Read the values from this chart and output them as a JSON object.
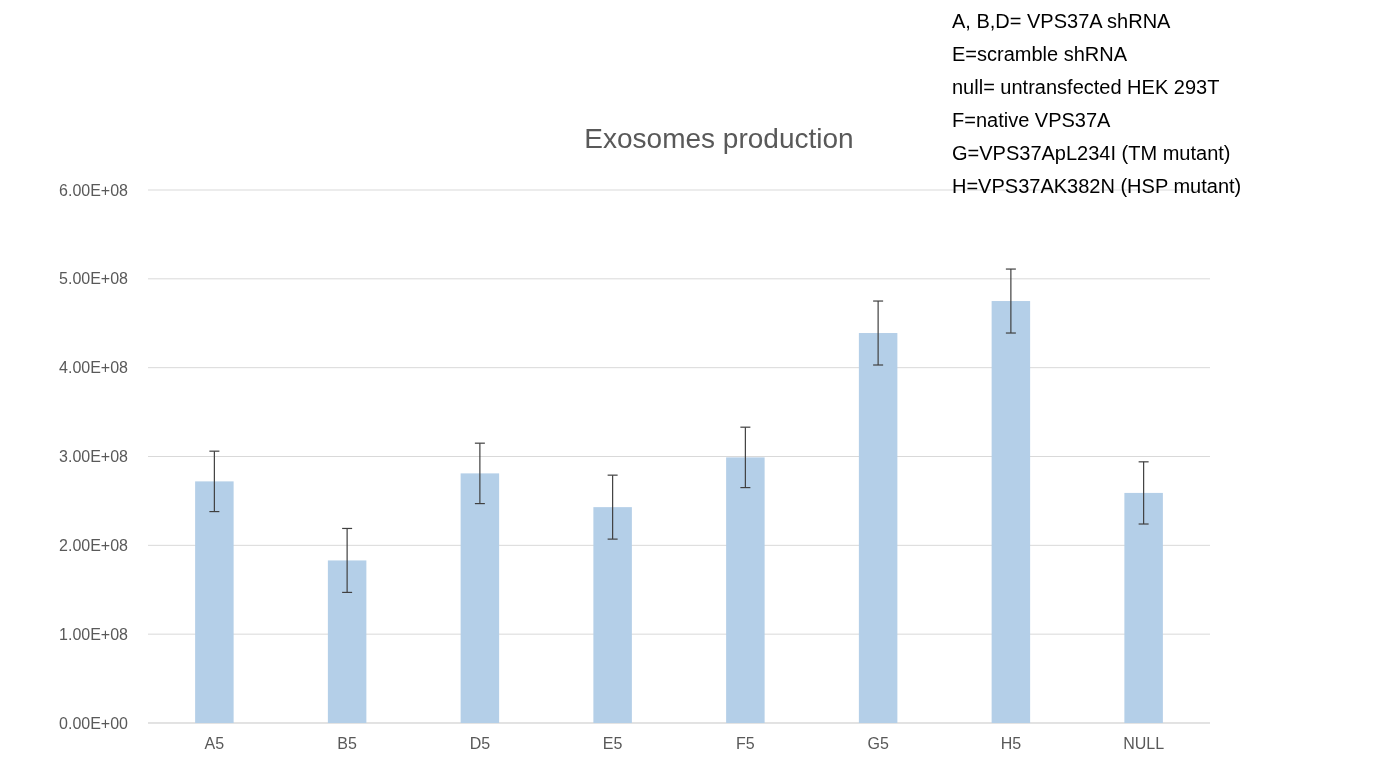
{
  "chart_data": {
    "type": "bar",
    "title": "Exosomes production",
    "categories": [
      "A5",
      "B5",
      "D5",
      "E5",
      "F5",
      "G5",
      "H5",
      "NULL"
    ],
    "values": [
      272000000,
      183000000,
      281000000,
      243000000,
      299000000,
      439000000,
      475000000,
      259000000
    ],
    "errors": [
      34000000,
      36000000,
      34000000,
      36000000,
      34000000,
      36000000,
      36000000,
      35000000
    ],
    "color": "#b4cfe8",
    "ylim": [
      0,
      600000000
    ],
    "yticks": [
      {
        "value": 0,
        "label": "0.00E+00"
      },
      {
        "value": 100000000,
        "label": "1.00E+08"
      },
      {
        "value": 200000000,
        "label": "2.00E+08"
      },
      {
        "value": 300000000,
        "label": "3.00E+08"
      },
      {
        "value": 400000000,
        "label": "4.00E+08"
      },
      {
        "value": 500000000,
        "label": "5.00E+08"
      },
      {
        "value": 600000000,
        "label": "6.00E+08"
      }
    ],
    "grid": "y",
    "annotations": [
      "A, B,D= VPS37A shRNA",
      "E=scramble shRNA",
      "null= untransfected HEK 293T",
      "F=native VPS37A",
      "G=VPS37ApL234I (TM mutant)",
      "H=VPS37AK382N (HSP mutant)"
    ]
  }
}
